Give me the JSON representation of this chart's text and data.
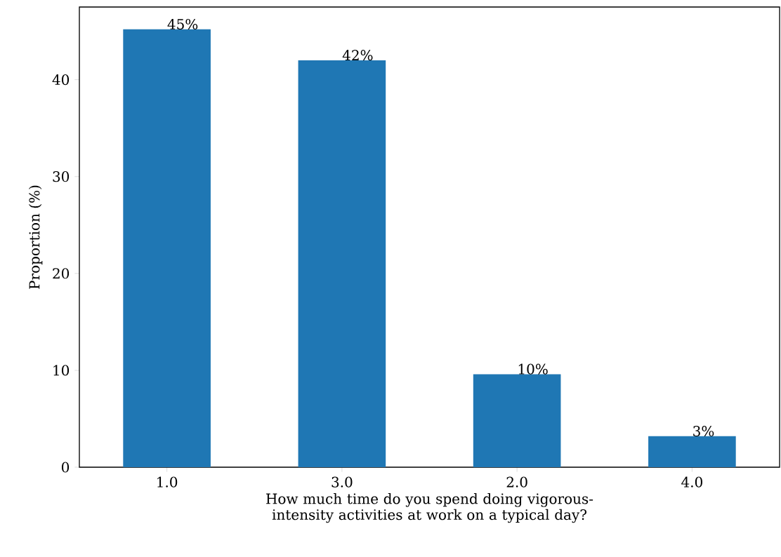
{
  "chart_data": {
    "type": "bar",
    "xlabel": "How much time do you spend doing vigorous-intensity activities at work on a typical day?",
    "ylabel": "Proportion (%)",
    "categories": [
      "1.0",
      "3.0",
      "2.0",
      "4.0"
    ],
    "values": [
      45.2,
      42.0,
      9.6,
      3.2
    ],
    "value_labels": [
      "45%",
      "42%",
      "10%",
      "3%"
    ],
    "color": "#1f77b4",
    "ylim": [
      0,
      47.5
    ],
    "yticks": [
      0,
      10,
      20,
      30,
      40
    ]
  }
}
